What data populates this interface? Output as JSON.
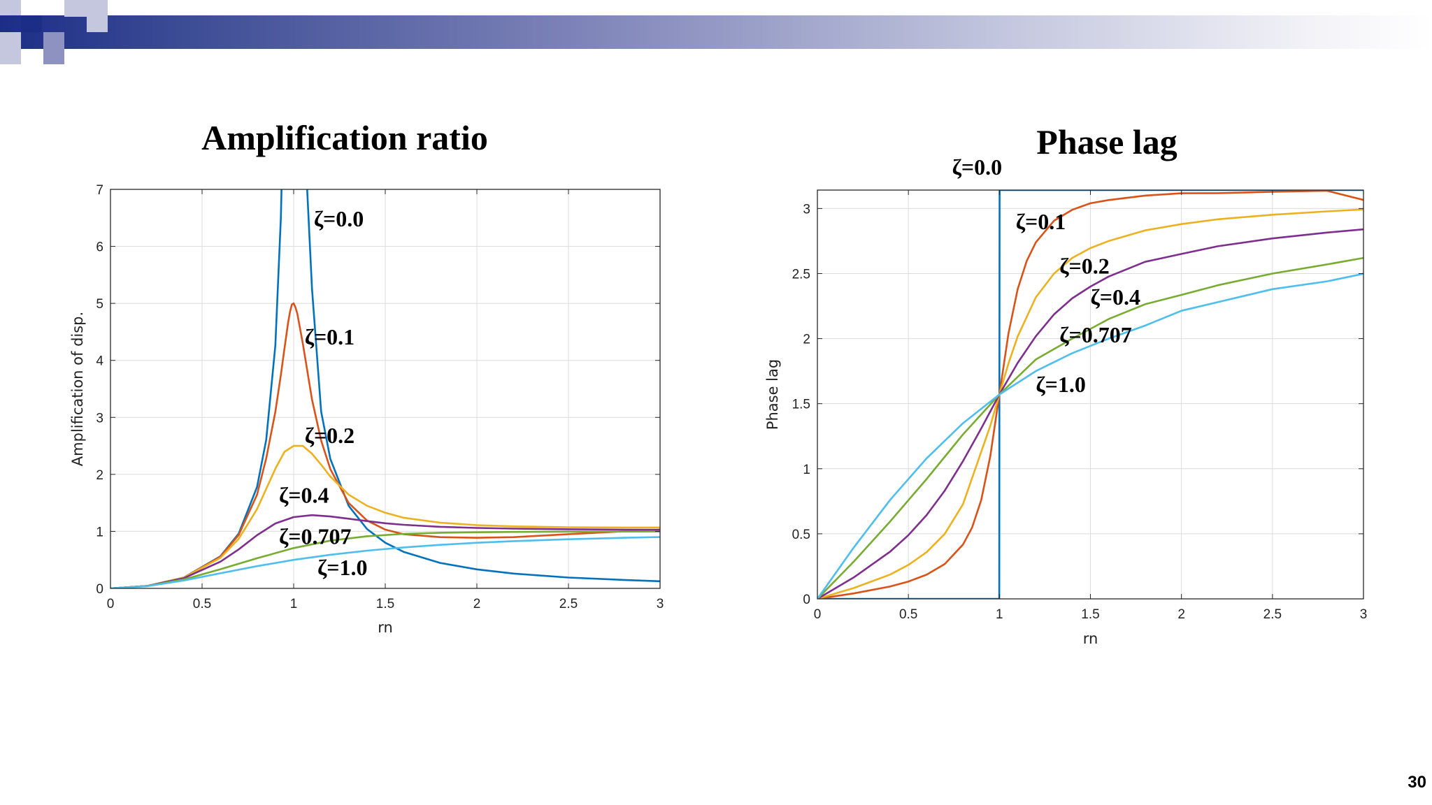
{
  "page_number": "30",
  "colors": {
    "header_dark": "#1c2d87",
    "header_light": "#c3c6de",
    "series": [
      "#0072BD",
      "#D95319",
      "#EDB120",
      "#7E2F8E",
      "#77AC30",
      "#4DBEEE"
    ]
  },
  "chart_data": [
    {
      "type": "line",
      "title": "Amplification ratio",
      "xlabel": "rn",
      "ylabel": "Amplification of disp.",
      "xlim": [
        0,
        3
      ],
      "ylim": [
        0,
        7
      ],
      "xticks": [
        0,
        0.5,
        1,
        1.5,
        2,
        2.5,
        3
      ],
      "xtick_labels": [
        "0",
        "0.5",
        "1",
        "1.5",
        "2",
        "2.5",
        "3"
      ],
      "yticks": [
        0,
        1,
        2,
        3,
        4,
        5,
        6,
        7
      ],
      "ytick_labels": [
        "0",
        "1",
        "2",
        "3",
        "4",
        "5",
        "6",
        "7"
      ],
      "grid": true,
      "series": [
        {
          "zeta": 0.0,
          "x": [
            0,
            0.2,
            0.4,
            0.6,
            0.7,
            0.8,
            0.85,
            0.9,
            0.93,
            0.95,
            1.05,
            1.07,
            1.1,
            1.15,
            1.2,
            1.3,
            1.4,
            1.5,
            1.6,
            1.8,
            2.0,
            2.2,
            2.5,
            2.8,
            3.0
          ],
          "y": [
            0,
            0.042,
            0.19,
            0.563,
            0.961,
            1.778,
            2.604,
            4.263,
            6.51,
            9.26,
            9.76,
            7.25,
            5.26,
            3.102,
            2.273,
            1.449,
            1.042,
            0.8,
            0.641,
            0.446,
            0.333,
            0.26,
            0.19,
            0.148,
            0.125
          ]
        },
        {
          "zeta": 0.1,
          "x": [
            0,
            0.2,
            0.4,
            0.6,
            0.7,
            0.8,
            0.85,
            0.9,
            0.93,
            0.95,
            0.97,
            0.98,
            0.99,
            1.0,
            1.01,
            1.02,
            1.05,
            1.1,
            1.15,
            1.2,
            1.3,
            1.4,
            1.5,
            1.6,
            1.8,
            2.0,
            2.2,
            2.5,
            2.8,
            3.0
          ],
          "y": [
            0,
            0.042,
            0.189,
            0.555,
            0.938,
            1.644,
            2.279,
            3.098,
            3.747,
            4.213,
            4.667,
            4.853,
            4.98,
            5.0,
            4.93,
            4.82,
            4.295,
            3.314,
            2.593,
            2.094,
            1.499,
            1.191,
            1.031,
            0.95,
            0.899,
            0.887,
            0.898,
            0.951,
            1.0,
            1.029
          ]
        },
        {
          "zeta": 0.2,
          "x": [
            0,
            0.2,
            0.4,
            0.6,
            0.7,
            0.8,
            0.85,
            0.9,
            0.95,
            1.0,
            1.05,
            1.1,
            1.15,
            1.2,
            1.3,
            1.4,
            1.5,
            1.6,
            1.8,
            2.0,
            2.2,
            2.5,
            2.8,
            3.0
          ],
          "y": [
            0,
            0.042,
            0.187,
            0.534,
            0.869,
            1.391,
            1.744,
            2.099,
            2.397,
            2.5,
            2.5,
            2.362,
            2.17,
            1.963,
            1.645,
            1.45,
            1.326,
            1.24,
            1.152,
            1.11,
            1.088,
            1.073,
            1.068,
            1.068
          ]
        },
        {
          "zeta": 0.4,
          "x": [
            0,
            0.2,
            0.4,
            0.6,
            0.7,
            0.8,
            0.9,
            1.0,
            1.1,
            1.2,
            1.3,
            1.4,
            1.5,
            1.6,
            1.8,
            2.0,
            2.2,
            2.5,
            2.8,
            3.0
          ],
          "y": [
            0,
            0.042,
            0.179,
            0.468,
            0.684,
            0.933,
            1.139,
            1.25,
            1.285,
            1.262,
            1.222,
            1.18,
            1.143,
            1.115,
            1.08,
            1.06,
            1.048,
            1.037,
            1.03,
            1.027
          ]
        },
        {
          "zeta": 0.707,
          "x": [
            0,
            0.2,
            0.4,
            0.6,
            0.8,
            1.0,
            1.2,
            1.4,
            1.6,
            1.8,
            2.0,
            2.2,
            2.5,
            2.8,
            3.0
          ],
          "y": [
            0,
            0.04,
            0.157,
            0.336,
            0.528,
            0.707,
            0.837,
            0.915,
            0.956,
            0.976,
            0.985,
            0.991,
            0.995,
            0.997,
            0.998
          ]
        },
        {
          "zeta": 1.0,
          "x": [
            0,
            0.2,
            0.4,
            0.6,
            0.8,
            1.0,
            1.2,
            1.4,
            1.6,
            1.8,
            2.0,
            2.2,
            2.5,
            2.8,
            3.0
          ],
          "y": [
            0,
            0.038,
            0.138,
            0.265,
            0.39,
            0.5,
            0.59,
            0.662,
            0.719,
            0.764,
            0.8,
            0.829,
            0.862,
            0.887,
            0.9
          ]
        }
      ],
      "annotations": [
        {
          "text": "ζ=0.0",
          "x": 1.11,
          "y": 6.35
        },
        {
          "text": "ζ=0.1",
          "x": 1.06,
          "y": 4.28
        },
        {
          "text": "ζ=0.2",
          "x": 1.06,
          "y": 2.55
        },
        {
          "text": "ζ=0.4",
          "x": 0.92,
          "y": 1.5
        },
        {
          "text": "ζ=0.707",
          "x": 0.92,
          "y": 0.78
        },
        {
          "text": "ζ=1.0",
          "x": 1.13,
          "y": 0.23
        }
      ]
    },
    {
      "type": "line",
      "title": "Phase lag",
      "xlabel": "rn",
      "ylabel": "Phase lag",
      "xlim": [
        0,
        3
      ],
      "ylim": [
        0,
        3.1416
      ],
      "xticks": [
        0,
        0.5,
        1,
        1.5,
        2,
        2.5,
        3
      ],
      "xtick_labels": [
        "0",
        "0.5",
        "1",
        "1.5",
        "2",
        "2.5",
        "3"
      ],
      "yticks": [
        0,
        0.5,
        1,
        1.5,
        2,
        2.5,
        3
      ],
      "ytick_labels": [
        "0",
        "0.5",
        "1",
        "1.5",
        "2",
        "2.5",
        "3"
      ],
      "grid": true,
      "series": [
        {
          "zeta": 0.0,
          "x": [
            0,
            0.999,
            1.0,
            1.001,
            3.0
          ],
          "y": [
            0,
            0,
            1.5708,
            3.1416,
            3.1416
          ]
        },
        {
          "zeta": 0.1,
          "x": [
            0,
            0.2,
            0.4,
            0.5,
            0.6,
            0.7,
            0.8,
            0.85,
            0.9,
            0.95,
            1.0,
            1.05,
            1.1,
            1.15,
            1.2,
            1.3,
            1.4,
            1.5,
            1.6,
            1.8,
            2.0,
            2.2,
            2.5,
            2.8,
            3.0
          ],
          "y": [
            0,
            0.042,
            0.095,
            0.133,
            0.186,
            0.268,
            0.418,
            0.549,
            0.759,
            1.097,
            1.571,
            2.04,
            2.379,
            2.597,
            2.74,
            2.906,
            2.99,
            3.04,
            3.065,
            3.099,
            3.117,
            3.118,
            3.128,
            3.136,
            3.066
          ]
        },
        {
          "zeta": 0.2,
          "x": [
            0,
            0.2,
            0.4,
            0.5,
            0.6,
            0.7,
            0.8,
            0.9,
            0.95,
            1.0,
            1.05,
            1.1,
            1.2,
            1.3,
            1.4,
            1.5,
            1.6,
            1.8,
            2.0,
            2.2,
            2.5,
            2.8,
            3.0
          ],
          "y": [
            0,
            0.083,
            0.187,
            0.261,
            0.359,
            0.5,
            0.728,
            1.13,
            1.33,
            1.571,
            1.81,
            2.016,
            2.317,
            2.5,
            2.62,
            2.696,
            2.75,
            2.832,
            2.88,
            2.917,
            2.952,
            2.978,
            2.993
          ]
        },
        {
          "zeta": 0.4,
          "x": [
            0,
            0.2,
            0.4,
            0.5,
            0.6,
            0.7,
            0.8,
            0.9,
            1.0,
            1.1,
            1.2,
            1.3,
            1.4,
            1.5,
            1.6,
            1.8,
            2.0,
            2.2,
            2.5,
            2.8,
            3.0
          ],
          "y": [
            0,
            0.165,
            0.363,
            0.49,
            0.644,
            0.832,
            1.059,
            1.31,
            1.571,
            1.813,
            2.018,
            2.186,
            2.31,
            2.4,
            2.477,
            2.59,
            2.651,
            2.71,
            2.77,
            2.815,
            2.84
          ]
        },
        {
          "zeta": 0.707,
          "x": [
            0,
            0.2,
            0.4,
            0.6,
            0.8,
            1.0,
            1.2,
            1.4,
            1.6,
            1.8,
            2.0,
            2.2,
            2.5,
            2.8,
            3.0
          ],
          "y": [
            0,
            0.287,
            0.595,
            0.921,
            1.264,
            1.571,
            1.84,
            2.0,
            2.15,
            2.264,
            2.336,
            2.41,
            2.5,
            2.57,
            2.62
          ]
        },
        {
          "zeta": 1.0,
          "x": [
            0,
            0.2,
            0.4,
            0.6,
            0.8,
            1.0,
            1.2,
            1.4,
            1.6,
            1.8,
            2.0,
            2.2,
            2.5,
            2.8,
            3.0
          ],
          "y": [
            0,
            0.395,
            0.761,
            1.08,
            1.35,
            1.571,
            1.75,
            1.888,
            2.0,
            2.1,
            2.214,
            2.28,
            2.38,
            2.44,
            2.498
          ]
        }
      ],
      "annotations": [
        {
          "text": "ζ=0.0",
          "x": 0.74,
          "y": 3.26
        },
        {
          "text": "ζ=0.1",
          "x": 1.09,
          "y": 2.84
        },
        {
          "text": "ζ=0.2",
          "x": 1.33,
          "y": 2.5
        },
        {
          "text": "ζ=0.4",
          "x": 1.5,
          "y": 2.26
        },
        {
          "text": "ζ=0.707",
          "x": 1.33,
          "y": 1.97
        },
        {
          "text": "ζ=1.0",
          "x": 1.2,
          "y": 1.59
        }
      ]
    }
  ]
}
